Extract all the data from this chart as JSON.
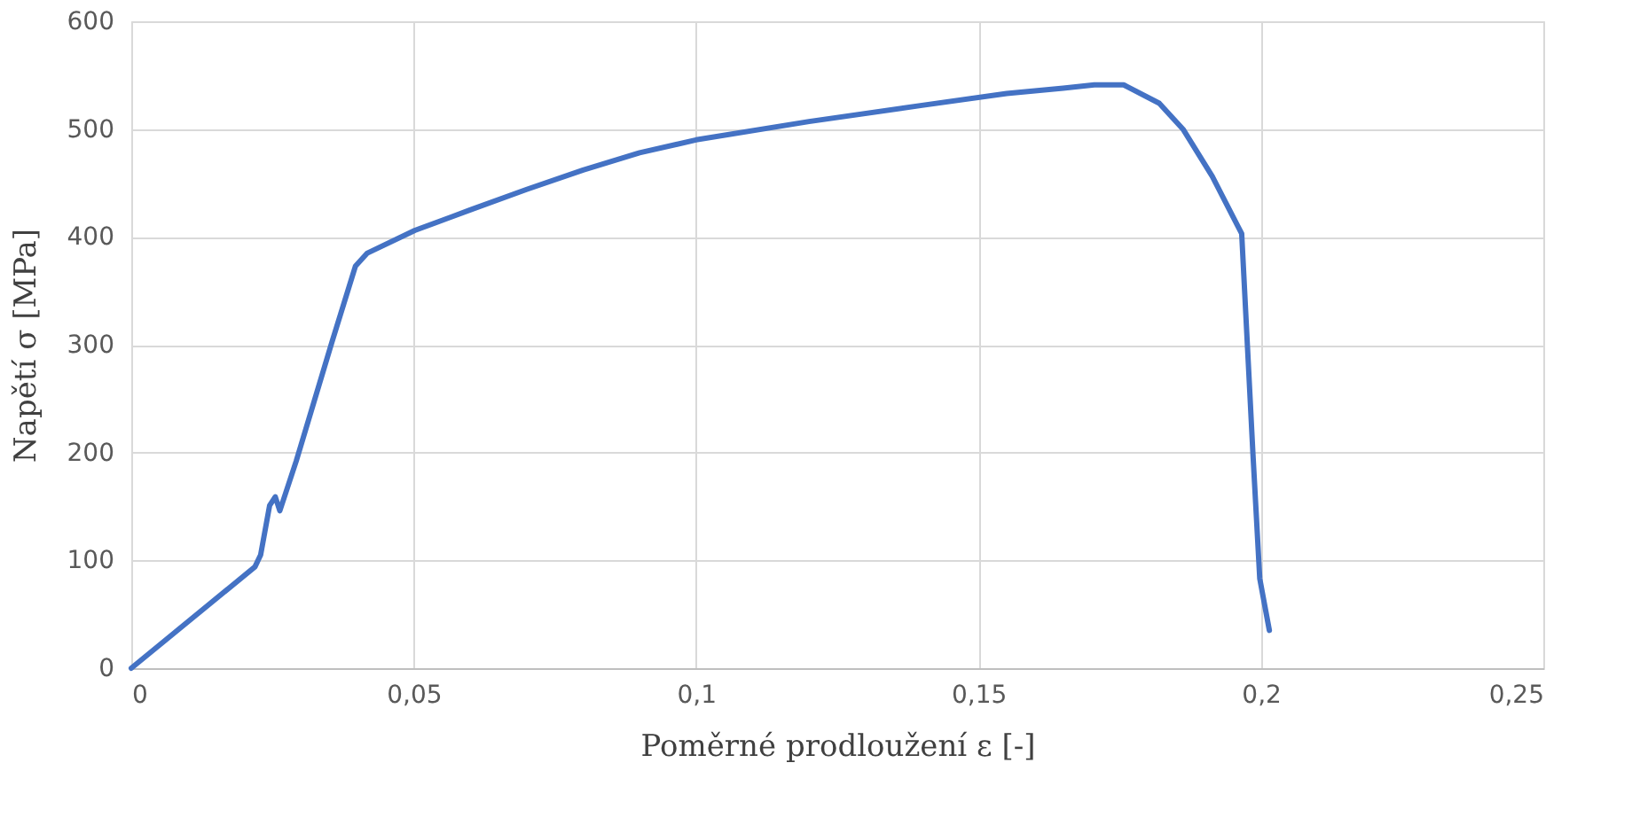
{
  "chart_data": {
    "type": "line",
    "xlabel": "Poměrné prodloužení ε [-]",
    "ylabel": "Napětí σ [MPa]",
    "x": [
      0,
      0.0219,
      0.0229,
      0.0245,
      0.0255,
      0.0263,
      0.0292,
      0.0355,
      0.0397,
      0.0418,
      0.0502,
      0.06,
      0.07,
      0.08,
      0.09,
      0.1,
      0.12,
      0.14,
      0.155,
      0.165,
      0.1705,
      0.1757,
      0.182,
      0.1862,
      0.1914,
      0.1966,
      0.1986,
      0.1998,
      0.2015
    ],
    "series": [
      {
        "color": "#4472c4",
        "values": [
          0,
          94,
          105,
          151,
          159,
          146,
          192,
          302,
          373,
          385,
          406,
          425,
          444,
          462,
          478,
          490,
          507,
          522,
          533,
          538,
          541,
          541,
          524,
          500,
          456,
          403,
          198,
          83,
          35
        ]
      }
    ],
    "xlim": [
      0,
      0.25
    ],
    "xticks": [
      {
        "value": 0,
        "label": "0"
      },
      {
        "value": 0.05,
        "label": "0,05"
      },
      {
        "value": 0.1,
        "label": "0,1"
      },
      {
        "value": 0.15,
        "label": "0,15"
      },
      {
        "value": 0.2,
        "label": "0,2"
      },
      {
        "value": 0.25,
        "label": "0,25"
      }
    ],
    "ylim": [
      0,
      600
    ],
    "yticks": [
      0,
      100,
      200,
      300,
      400,
      500,
      600
    ],
    "grid": true,
    "marker": "none",
    "line_style": "solid"
  }
}
